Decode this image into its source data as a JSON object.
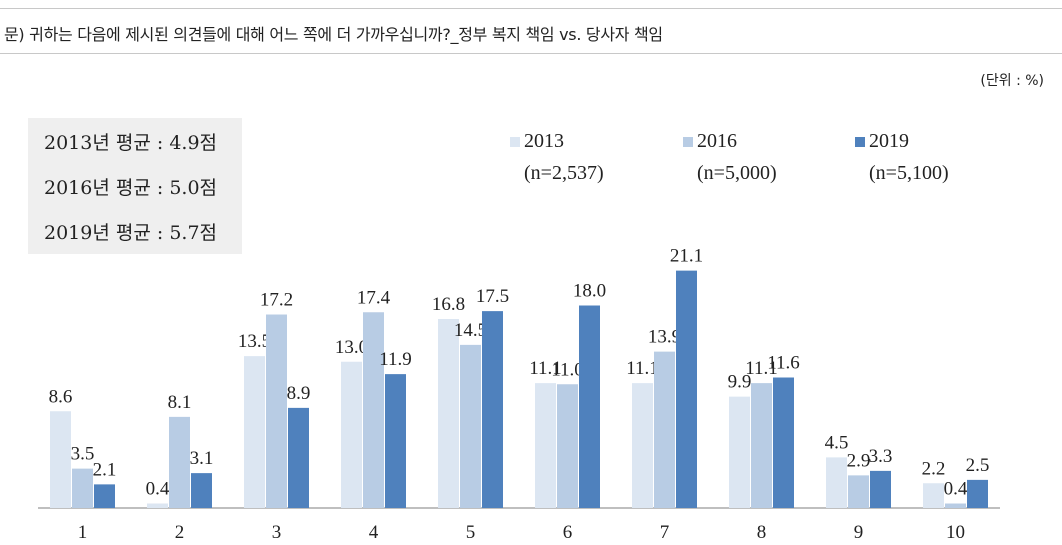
{
  "question": "문) 귀하는 다음에 제시된 의견들에 대해 어느 쪽에 더 가까우십니까?_정부 복지 책임 vs. 당사자 책임",
  "unit": "(단위 : %)",
  "averages": [
    "2013년 평균 : 4.9점",
    "2016년 평균 : 5.0점",
    "2019년 평균 : 5.7점"
  ],
  "colors": {
    "s2013": "#dce6f2",
    "s2016": "#b8cce4",
    "s2019": "#4f81bd"
  },
  "chart_data": {
    "type": "bar",
    "categories": [
      "1",
      "2",
      "3",
      "4",
      "5",
      "6",
      "7",
      "8",
      "9",
      "10"
    ],
    "series": [
      {
        "name": "2013",
        "n": "(n=2,537)",
        "values": [
          8.6,
          0.4,
          13.5,
          13.0,
          16.8,
          11.1,
          11.1,
          9.9,
          4.5,
          2.2
        ]
      },
      {
        "name": "2016",
        "n": "(n=5,000)",
        "values": [
          3.5,
          8.1,
          17.2,
          17.4,
          14.5,
          11.0,
          13.9,
          11.1,
          2.9,
          0.4
        ]
      },
      {
        "name": "2019",
        "n": "(n=5,100)",
        "values": [
          2.1,
          3.1,
          8.9,
          11.9,
          17.5,
          18.0,
          21.1,
          11.6,
          3.3,
          2.5
        ]
      }
    ],
    "ylim": [
      0,
      22
    ]
  }
}
